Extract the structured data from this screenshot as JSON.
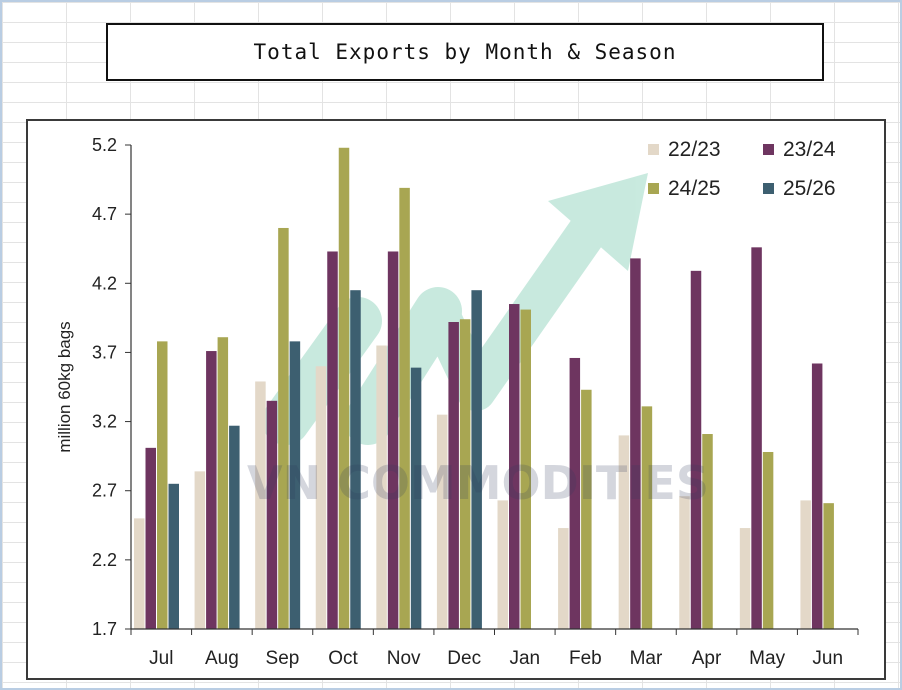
{
  "title": "Total Exports by Month & Season",
  "chart_data": {
    "type": "bar",
    "ylabel": "million 60kg bags",
    "xlabel": "",
    "ylim": [
      1.7,
      5.2
    ],
    "yticks": [
      "5.2",
      "4.7",
      "4.2",
      "3.7",
      "3.2",
      "2.7",
      "2.2",
      "1.7"
    ],
    "categories": [
      "Jul",
      "Aug",
      "Sep",
      "Oct",
      "Nov",
      "Dec",
      "Jan",
      "Feb",
      "Mar",
      "Apr",
      "May",
      "Jun"
    ],
    "legend_position": "top-right",
    "grid": false,
    "series": [
      {
        "name": "22/23",
        "color": "#e3d8c8",
        "values": [
          2.5,
          2.84,
          3.49,
          3.6,
          3.75,
          3.25,
          2.63,
          2.43,
          3.1,
          2.66,
          2.43,
          2.63
        ]
      },
      {
        "name": "23/24",
        "color": "#6e3560",
        "values": [
          3.01,
          3.71,
          3.35,
          4.43,
          4.43,
          3.92,
          4.05,
          3.66,
          4.38,
          4.29,
          4.46,
          3.62
        ]
      },
      {
        "name": "24/25",
        "color": "#a8a652",
        "values": [
          3.78,
          3.81,
          4.6,
          5.18,
          4.89,
          3.94,
          4.01,
          3.43,
          3.31,
          3.11,
          2.98,
          2.61
        ]
      },
      {
        "name": "25/26",
        "color": "#3d5f70",
        "values": [
          2.75,
          3.17,
          3.78,
          4.15,
          3.59,
          4.15,
          null,
          null,
          null,
          null,
          null,
          null
        ]
      }
    ],
    "watermark": "VN COMMODITIES"
  }
}
